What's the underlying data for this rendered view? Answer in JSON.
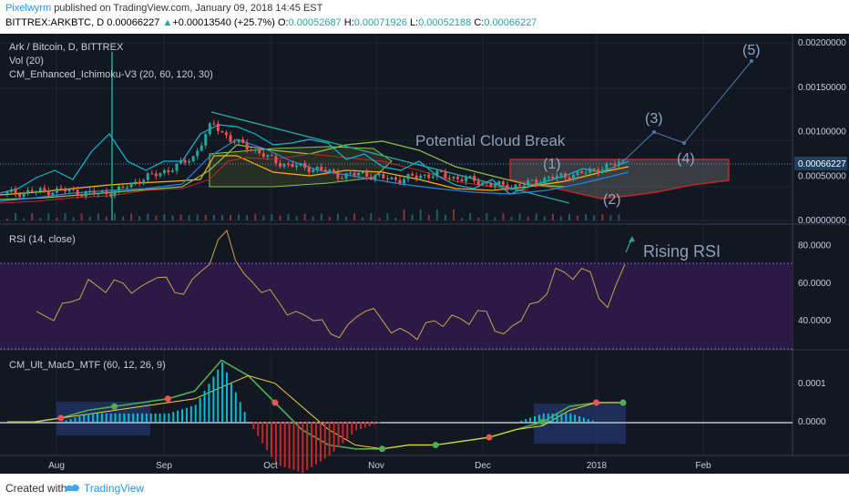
{
  "header": {
    "author": "Pixelwyrm",
    "published_text": "published on TradingView.com, January 09, 2018 14:45 EST",
    "symbol": "BITTREX:ARKBTC, D",
    "last": "0.00066227",
    "change": "+0.00013540 (+25.7%)",
    "o_label": "O:",
    "o": "0.00052687",
    "h_label": "H:",
    "h": "0.00071926",
    "l_label": "L:",
    "l": "0.00052188",
    "c_label": "C:",
    "c": "0.00066227"
  },
  "footer": {
    "created_with": "Created with",
    "brand": "TradingView"
  },
  "colors": {
    "bg": "#131722",
    "grid": "#1e2433",
    "up": "#26a69a",
    "down": "#ef5350",
    "rsi_fill": "#2a1a45",
    "rsi_line": "#c9a548",
    "price_tag": "#1f4060",
    "annotation": "#8aa8c8"
  },
  "chart_data": [
    {
      "type": "line",
      "title": "Ark / Bitcoin, D, BITTREX",
      "indicators": [
        "Vol (20)",
        "CM_Enhanced_Ichimoku-V3 (20, 60, 120, 30)"
      ],
      "x_ticks": [
        "Aug",
        "Sep",
        "Oct",
        "Nov",
        "Dec",
        "2018",
        "Feb"
      ],
      "y_ticks": [
        "0.00200000",
        "0.00150000",
        "0.00100000",
        "0.00050000",
        "0.00000000"
      ],
      "ylim": [
        0,
        0.002
      ],
      "last_price_label": "0.00066227",
      "annotations": [
        "Potential Cloud Break",
        "(1)",
        "(2)",
        "(3)",
        "(4)",
        "(5)"
      ],
      "series": [
        {
          "name": "",
          "values": [
            0.0003,
            0.00032,
            0.00033,
            0.00034,
            0.00031,
            0.0003,
            0.00034,
            0.00045,
            0.00052,
            0.0006,
            0.00072,
            0.0011,
            0.0009,
            0.00082,
            0.0007,
            0.00062,
            0.0006,
            0.00056,
            0.0005,
            0.00053,
            0.00048,
            0.00046,
            0.0005,
            0.00052,
            0.00048,
            0.00045,
            0.0004,
            0.00038,
            0.00042,
            0.00048,
            0.0005,
            0.00054,
            0.0006,
            0.00066
          ]
        }
      ]
    },
    {
      "type": "line",
      "title": "RSI (14, close)",
      "annotations": [
        "Rising RSI"
      ],
      "y_ticks": [
        "80.0000",
        "60.0000",
        "40.0000"
      ],
      "ylim": [
        25,
        90
      ],
      "series": [
        {
          "name": "",
          "values": [
            45,
            40,
            50,
            62,
            55,
            60,
            58,
            63,
            55,
            62,
            70,
            88,
            65,
            55,
            50,
            45,
            40,
            33,
            38,
            45,
            40,
            36,
            30,
            40,
            43,
            38,
            45,
            33,
            40,
            50,
            68,
            62,
            66,
            47,
            70
          ]
        }
      ]
    },
    {
      "type": "line",
      "title": "CM_Ult_MacD_MTF (60, 12, 26, 9)",
      "y_ticks": [
        "0.0001",
        "0.0000"
      ],
      "ylim": [
        -8e-05,
        0.00018
      ],
      "series": [
        {
          "name": "",
          "values": [
            0.0,
            0.0,
            1e-05,
            3e-05,
            4e-05,
            5e-05,
            6e-05,
            8e-05,
            0.00016,
            0.00012,
            5e-05,
            -2e-05,
            -6e-05,
            -7e-05,
            -7e-05,
            -6e-05,
            -6e-05,
            -5e-05,
            -4e-05,
            -2e-05,
            0.0,
            4e-05,
            5e-05,
            5e-05
          ]
        },
        {
          "name": "",
          "values": [
            0.0,
            0.0,
            1e-05,
            2e-05,
            3e-05,
            4e-05,
            5e-05,
            6e-05,
            9e-05,
            0.00012,
            0.0001,
            4e-05,
            -2e-05,
            -6e-05,
            -7e-05,
            -6e-05,
            -6e-05,
            -5e-05,
            -4e-05,
            -2e-05,
            -1e-05,
            3e-05,
            5e-05,
            5e-05
          ]
        }
      ]
    }
  ]
}
